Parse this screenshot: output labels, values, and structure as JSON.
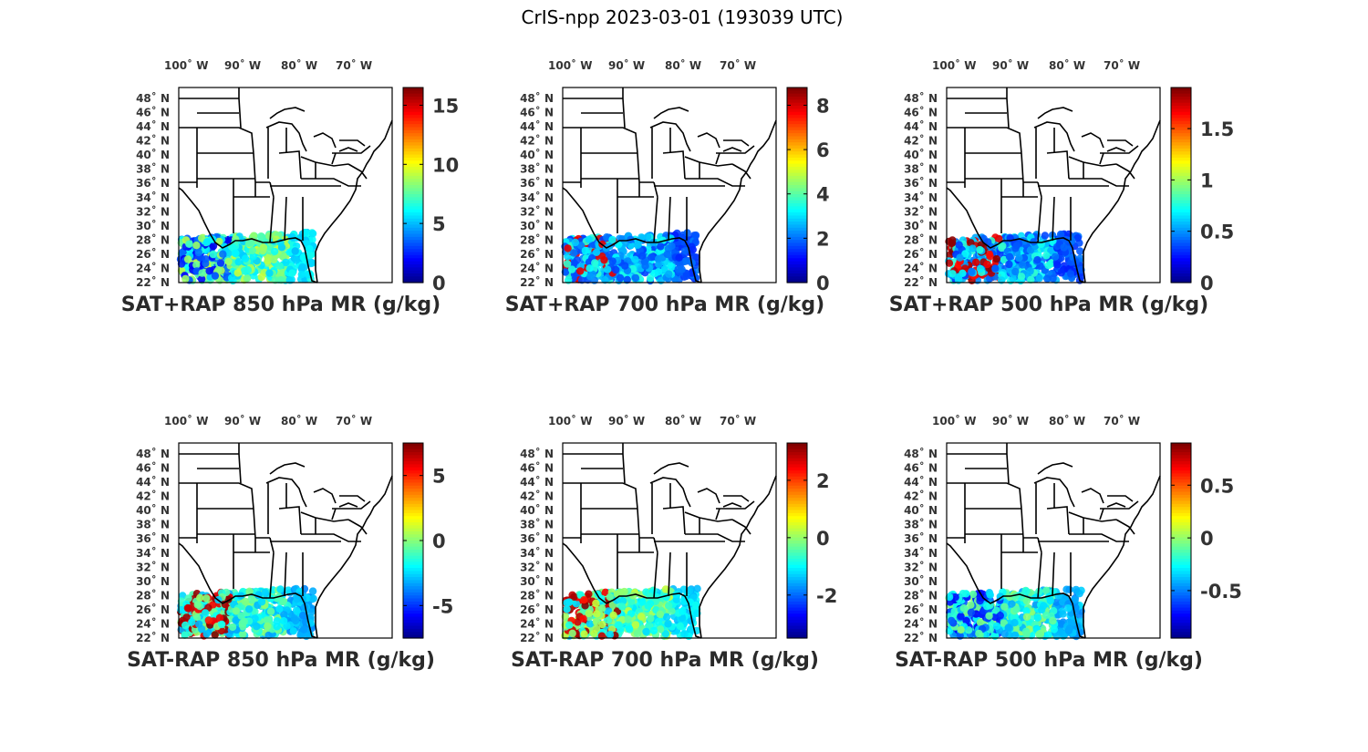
{
  "figure_title": "CrIS-npp 2023-03-01 (193039 UTC)",
  "lon_ticks": [
    "100˚ W",
    "90˚ W",
    "80˚ W",
    "70˚ W"
  ],
  "lat_ticks": [
    "48˚ N",
    "46˚ N",
    "44˚ N",
    "42˚ N",
    "40˚ N",
    "38˚ N",
    "36˚ N",
    "34˚ N",
    "32˚ N",
    "30˚ N",
    "28˚ N",
    "26˚ N",
    "24˚ N",
    "22˚ N"
  ],
  "colormap": "jet",
  "panels": [
    {
      "title": "SAT+RAP 850 hPa MR (g/kg)",
      "clim": [
        0,
        16.5
      ],
      "ticks": [
        "0",
        "5",
        "10",
        "15"
      ],
      "tick_values": [
        0,
        5,
        10,
        15
      ],
      "dominant_level": 0.45,
      "edge": "low"
    },
    {
      "title": "SAT+RAP 700 hPa MR (g/kg)",
      "clim": [
        0,
        8.8
      ],
      "ticks": [
        "0",
        "2",
        "4",
        "6",
        "8"
      ],
      "tick_values": [
        0,
        2,
        4,
        6,
        8
      ],
      "dominant_level": 0.3,
      "edge": "mixed"
    },
    {
      "title": "SAT+RAP 500 hPa MR (g/kg)",
      "clim": [
        0,
        1.9
      ],
      "ticks": [
        "0",
        "0.5",
        "1",
        "1.5"
      ],
      "tick_values": [
        0,
        0.5,
        1,
        1.5
      ],
      "dominant_level": 0.3,
      "edge": "high"
    },
    {
      "title": "SAT-RAP 850 hPa MR (g/kg)",
      "clim": [
        -7.5,
        7.5
      ],
      "ticks": [
        "-5",
        "0",
        "5"
      ],
      "tick_values": [
        -5,
        0,
        5
      ],
      "dominant_level": 0.4,
      "edge": "high"
    },
    {
      "title": "SAT-RAP 700 hPa MR (g/kg)",
      "clim": [
        -3.5,
        3.3
      ],
      "ticks": [
        "-2",
        "0",
        "2"
      ],
      "tick_values": [
        -2,
        0,
        2
      ],
      "dominant_level": 0.45,
      "edge": "high"
    },
    {
      "title": "SAT-RAP 500 hPa MR (g/kg)",
      "clim": [
        -0.95,
        0.9
      ],
      "ticks": [
        "-0.5",
        "0",
        "0.5"
      ],
      "tick_values": [
        -0.5,
        0,
        0.5
      ],
      "dominant_level": 0.4,
      "edge": "low"
    }
  ]
}
